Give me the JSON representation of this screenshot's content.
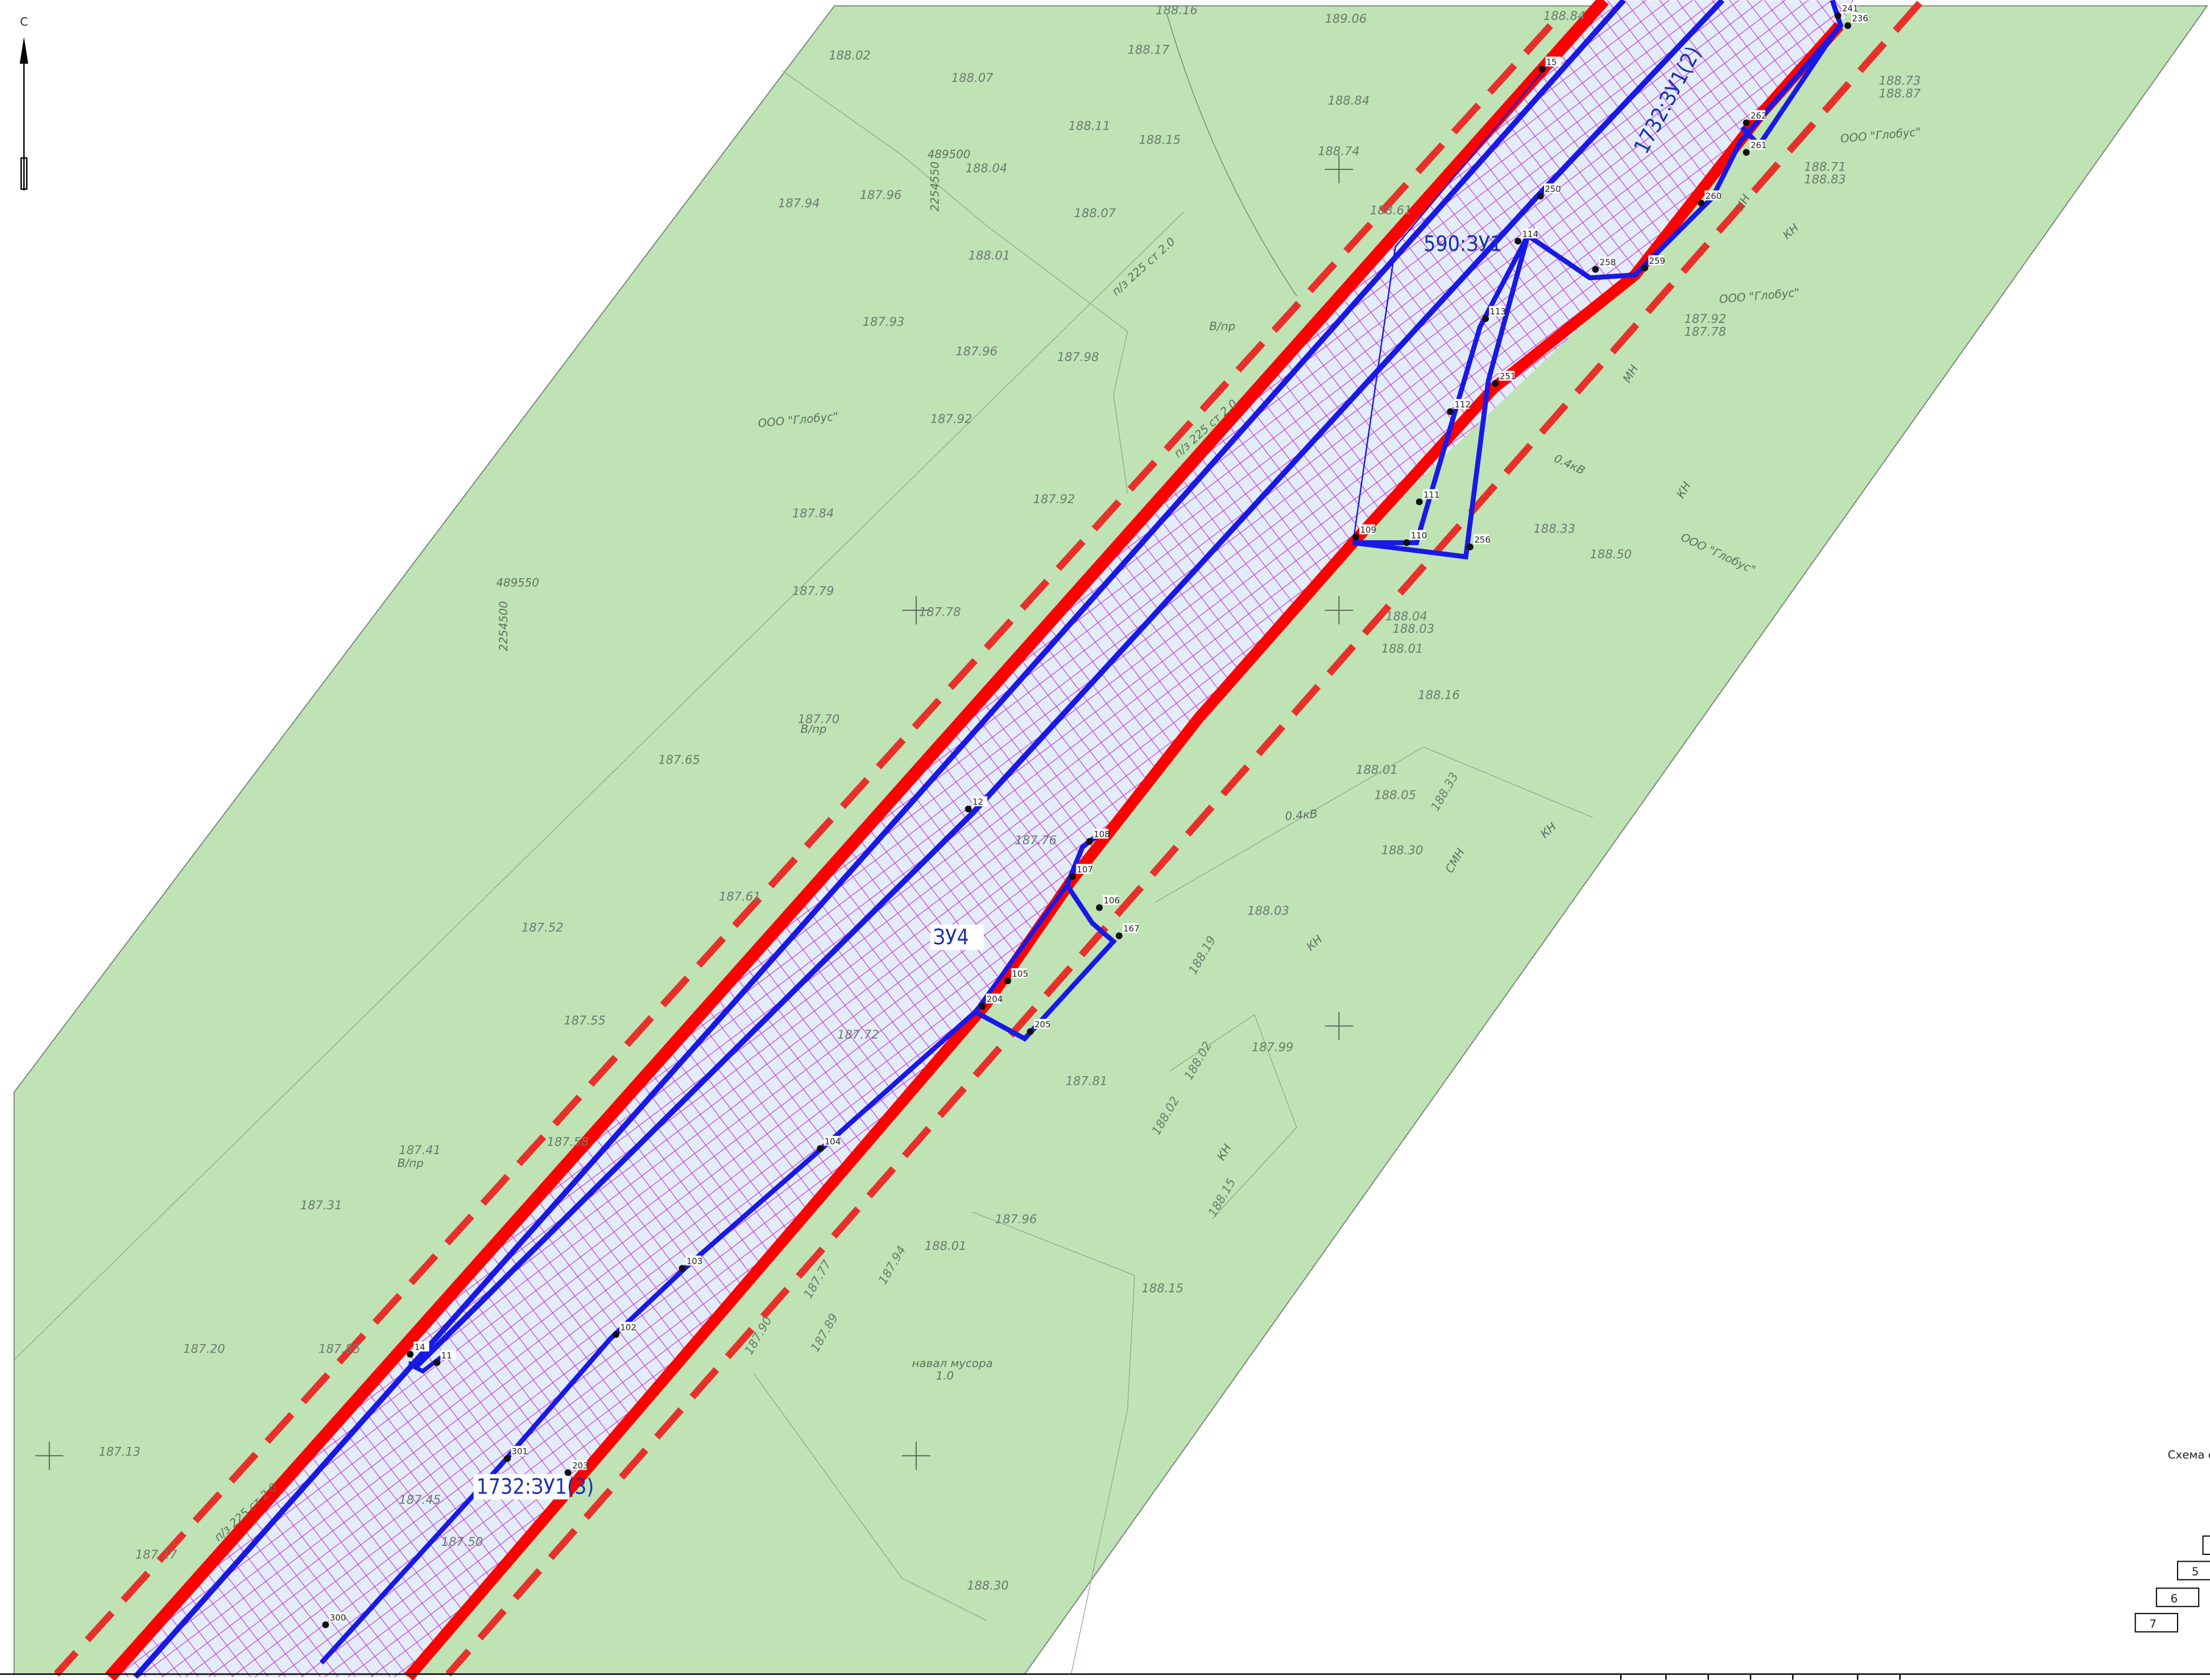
{
  "north": "С",
  "parcels": [
    "590:ЗУ1",
    "1732:ЗУ1(2)",
    "ЗУ4",
    "1732:ЗУ1(3)"
  ],
  "elevations": [
    "188.16",
    "189.06",
    "188.84",
    "188.02",
    "188.07",
    "188.17",
    "188.84",
    "188.11",
    "188.15",
    "188.74",
    "188.04",
    "187.94",
    "187.96",
    "188.07",
    "188.01",
    "188.61",
    "187.93",
    "187.96",
    "187.98",
    "187.92",
    "187.84",
    "187.92",
    "187.79",
    "187.78",
    "187.70",
    "187.65",
    "187.61",
    "187.52",
    "187.55",
    "187.72",
    "187.76",
    "187.81",
    "187.58",
    "187.41",
    "187.31",
    "187.20",
    "187.85",
    "187.13",
    "187.17",
    "187.45",
    "187.50",
    "188.33",
    "188.50",
    "188.04",
    "188.03",
    "188.01",
    "188.16",
    "188.01",
    "188.05",
    "188.30",
    "188.33",
    "188.03",
    "188.19",
    "187.99",
    "188.02",
    "188.02",
    "188.15",
    "188.01",
    "188.15",
    "187.94",
    "187.77",
    "187.89",
    "187.90",
    "188.30",
    "188.73",
    "188.87",
    "188.71",
    "188.83",
    "187.92",
    "187.78",
    "187.96"
  ],
  "points": [
    "12",
    "11",
    "14",
    "301",
    "203",
    "102",
    "103",
    "104",
    "204",
    "105",
    "205",
    "106",
    "107",
    "108",
    "167",
    "109",
    "110",
    "111",
    "112",
    "113",
    "114",
    "251",
    "256",
    "258",
    "259",
    "260",
    "261",
    "262",
    "250",
    "15",
    "241",
    "236",
    "300"
  ],
  "notes": [
    "ООО \"Глобус\"",
    "ООО \"Глобус\"",
    "ООО \"Глобус\"",
    "ООО \"Глобус\"",
    "0.4кВ",
    "0.4кВ",
    "В/пр",
    "В/пр",
    "В/пр",
    "489500",
    "489550",
    "2254550",
    "2254500",
    "п/з 225 ст 2.0",
    "п/з 225 ст 2.0",
    "п/з 225 ст 2.0",
    "навал мусора",
    "1.0",
    "КН",
    "КН",
    "КН",
    "КН",
    "КН",
    "МН",
    "СМН",
    "КН"
  ],
  "schema": {
    "title": "Схема с",
    "rows": [
      "5",
      "6",
      "7"
    ]
  }
}
